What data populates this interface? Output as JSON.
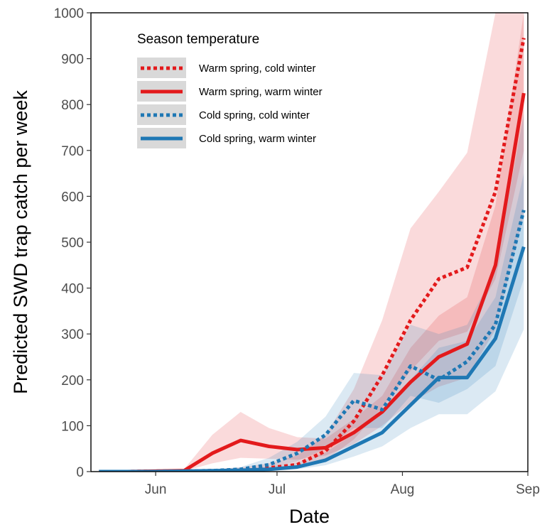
{
  "chart_data": {
    "type": "line",
    "title": "",
    "xlabel": "Date",
    "ylabel": "Predicted SWD trap catch per week",
    "ylim": [
      0,
      1000
    ],
    "yticks": [
      0,
      100,
      200,
      300,
      400,
      500,
      600,
      700,
      800,
      900,
      1000
    ],
    "xlim": [
      "2020-05-16",
      "2020-09-01"
    ],
    "xticks": [
      {
        "date": "2020-06-01",
        "label": "Jun"
      },
      {
        "date": "2020-07-01",
        "label": "Jul"
      },
      {
        "date": "2020-08-01",
        "label": "Aug"
      },
      {
        "date": "2020-09-01",
        "label": "Sep"
      }
    ],
    "x": [
      "2020-05-18",
      "2020-05-25",
      "2020-06-01",
      "2020-06-08",
      "2020-06-15",
      "2020-06-22",
      "2020-06-29",
      "2020-07-06",
      "2020-07-13",
      "2020-07-20",
      "2020-07-27",
      "2020-08-03",
      "2020-08-10",
      "2020-08-17",
      "2020-08-24",
      "2020-08-31"
    ],
    "grid": false,
    "legend": {
      "title": "Season temperature",
      "position": "top-left"
    },
    "series": [
      {
        "name": "Warm spring, cold winter",
        "color": "#e31a1c",
        "style": "dotted",
        "values": [
          0,
          0,
          1,
          1,
          2,
          4,
          8,
          15,
          45,
          110,
          210,
          330,
          420,
          445,
          610,
          945
        ],
        "lower": [
          0,
          0,
          0,
          0,
          1,
          2,
          4,
          8,
          25,
          70,
          140,
          220,
          285,
          305,
          420,
          700
        ],
        "upper": [
          0,
          0,
          2,
          3,
          5,
          9,
          18,
          35,
          80,
          180,
          330,
          530,
          610,
          695,
          1000,
          1000
        ]
      },
      {
        "name": "Warm spring, warm winter",
        "color": "#e31a1c",
        "style": "solid",
        "values": [
          0,
          0,
          1,
          2,
          40,
          68,
          55,
          48,
          52,
          85,
          130,
          195,
          250,
          278,
          450,
          825
        ],
        "lower": [
          0,
          0,
          0,
          1,
          18,
          30,
          28,
          26,
          35,
          60,
          100,
          150,
          185,
          205,
          310,
          560
        ],
        "upper": [
          0,
          0,
          2,
          5,
          80,
          130,
          95,
          75,
          72,
          115,
          165,
          270,
          340,
          380,
          580,
          1000
        ]
      },
      {
        "name": "Cold spring, cold winter",
        "color": "#1f78b4",
        "style": "dotted",
        "values": [
          0,
          0,
          0,
          1,
          2,
          5,
          15,
          40,
          80,
          155,
          135,
          230,
          200,
          240,
          320,
          570
        ],
        "lower": [
          0,
          0,
          0,
          0,
          1,
          2,
          8,
          22,
          50,
          95,
          95,
          165,
          150,
          180,
          230,
          420
        ],
        "upper": [
          0,
          0,
          1,
          2,
          4,
          10,
          30,
          65,
          120,
          215,
          210,
          320,
          300,
          320,
          440,
          780
        ]
      },
      {
        "name": "Cold spring, warm winter",
        "color": "#1f78b4",
        "style": "solid",
        "values": [
          0,
          0,
          0,
          1,
          2,
          3,
          5,
          10,
          25,
          55,
          85,
          145,
          205,
          205,
          290,
          490
        ],
        "lower": [
          0,
          0,
          0,
          0,
          1,
          1,
          2,
          5,
          14,
          33,
          55,
          95,
          125,
          125,
          175,
          310
        ],
        "upper": [
          0,
          0,
          1,
          2,
          4,
          6,
          10,
          20,
          42,
          82,
          125,
          200,
          270,
          285,
          380,
          650
        ]
      }
    ]
  }
}
